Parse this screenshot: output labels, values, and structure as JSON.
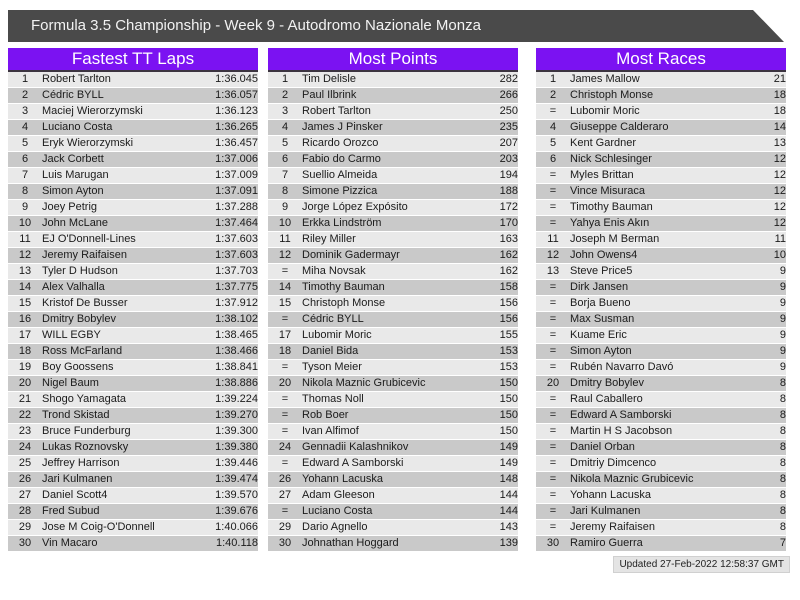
{
  "page_title": "Formula 3.5 Championship - Week 9 - Autodromo Nazionale Monza",
  "colors": {
    "accent_header": "#7b12f2",
    "title_bar": "#4a4a4a",
    "row_odd": "#e9e9e9",
    "row_even": "#c9c9c9"
  },
  "tables": [
    {
      "title": "Fastest TT Laps",
      "rows": [
        [
          "1",
          "Robert Tarlton",
          "1:36.045"
        ],
        [
          "2",
          "Cédric BYLL",
          "1:36.057"
        ],
        [
          "3",
          "Maciej Wierorzymski",
          "1:36.123"
        ],
        [
          "4",
          "Luciano Costa",
          "1:36.265"
        ],
        [
          "5",
          "Eryk Wierorzymski",
          "1:36.457"
        ],
        [
          "6",
          "Jack Corbett",
          "1:37.006"
        ],
        [
          "7",
          "Luis Marugan",
          "1:37.009"
        ],
        [
          "8",
          "Simon Ayton",
          "1:37.091"
        ],
        [
          "9",
          "Joey Petrig",
          "1:37.288"
        ],
        [
          "10",
          "John McLane",
          "1:37.464"
        ],
        [
          "11",
          "EJ O'Donnell-Lines",
          "1:37.603"
        ],
        [
          "12",
          "Jeremy Raifaisen",
          "1:37.603"
        ],
        [
          "13",
          "Tyler D Hudson",
          "1:37.703"
        ],
        [
          "14",
          "Alex Valhalla",
          "1:37.775"
        ],
        [
          "15",
          "Kristof De Busser",
          "1:37.912"
        ],
        [
          "16",
          "Dmitry Bobylev",
          "1:38.102"
        ],
        [
          "17",
          "WILL EGBY",
          "1:38.465"
        ],
        [
          "18",
          "Ross McFarland",
          "1:38.466"
        ],
        [
          "19",
          "Boy Goossens",
          "1:38.841"
        ],
        [
          "20",
          "Nigel Baum",
          "1:38.886"
        ],
        [
          "21",
          "Shogo Yamagata",
          "1:39.224"
        ],
        [
          "22",
          "Trond Skistad",
          "1:39.270"
        ],
        [
          "23",
          "Bruce Funderburg",
          "1:39.300"
        ],
        [
          "24",
          "Lukas Roznovsky",
          "1:39.380"
        ],
        [
          "25",
          "Jeffrey Harrison",
          "1:39.446"
        ],
        [
          "26",
          "Jari Kulmanen",
          "1:39.474"
        ],
        [
          "27",
          "Daniel Scott4",
          "1:39.570"
        ],
        [
          "28",
          "Fred Subud",
          "1:39.676"
        ],
        [
          "29",
          "Jose M Coig-O'Donnell",
          "1:40.066"
        ],
        [
          "30",
          "Vin Macaro",
          "1:40.118"
        ]
      ]
    },
    {
      "title": "Most Points",
      "rows": [
        [
          "1",
          "Tim Delisle",
          "282"
        ],
        [
          "2",
          "Paul Ilbrink",
          "266"
        ],
        [
          "3",
          "Robert Tarlton",
          "250"
        ],
        [
          "4",
          "James J Pinsker",
          "235"
        ],
        [
          "5",
          "Ricardo Orozco",
          "207"
        ],
        [
          "6",
          "Fabio do Carmo",
          "203"
        ],
        [
          "7",
          "Suellio Almeida",
          "194"
        ],
        [
          "8",
          "Simone Pizzica",
          "188"
        ],
        [
          "9",
          "Jorge López Expósito",
          "172"
        ],
        [
          "10",
          "Erkka Lindström",
          "170"
        ],
        [
          "11",
          "Riley Miller",
          "163"
        ],
        [
          "12",
          "Dominik Gadermayr",
          "162"
        ],
        [
          "=",
          "Miha Novsak",
          "162"
        ],
        [
          "14",
          "Timothy Bauman",
          "158"
        ],
        [
          "15",
          "Christoph Monse",
          "156"
        ],
        [
          "=",
          "Cédric BYLL",
          "156"
        ],
        [
          "17",
          "Lubomir Moric",
          "155"
        ],
        [
          "18",
          "Daniel Bida",
          "153"
        ],
        [
          "=",
          "Tyson Meier",
          "153"
        ],
        [
          "20",
          "Nikola Maznic Grubicevic",
          "150"
        ],
        [
          "=",
          "Thomas Noll",
          "150"
        ],
        [
          "=",
          "Rob Boer",
          "150"
        ],
        [
          "=",
          "Ivan Alfimof",
          "150"
        ],
        [
          "24",
          "Gennadii Kalashnikov",
          "149"
        ],
        [
          "=",
          "Edward A Samborski",
          "149"
        ],
        [
          "26",
          "Yohann Lacuska",
          "148"
        ],
        [
          "27",
          "Adam Gleeson",
          "144"
        ],
        [
          "=",
          "Luciano Costa",
          "144"
        ],
        [
          "29",
          "Dario Agnello",
          "143"
        ],
        [
          "30",
          "Johnathan Hoggard",
          "139"
        ]
      ]
    },
    {
      "title": "Most Races",
      "rows": [
        [
          "1",
          "James Mallow",
          "21"
        ],
        [
          "2",
          "Christoph Monse",
          "18"
        ],
        [
          "=",
          "Lubomir Moric",
          "18"
        ],
        [
          "4",
          "Giuseppe Calderaro",
          "14"
        ],
        [
          "5",
          "Kent Gardner",
          "13"
        ],
        [
          "6",
          "Nick Schlesinger",
          "12"
        ],
        [
          "=",
          "Myles Brittan",
          "12"
        ],
        [
          "=",
          "Vince Misuraca",
          "12"
        ],
        [
          "=",
          "Timothy Bauman",
          "12"
        ],
        [
          "=",
          "Yahya Enis Akın",
          "12"
        ],
        [
          "11",
          "Joseph M Berman",
          "11"
        ],
        [
          "12",
          "John Owens4",
          "10"
        ],
        [
          "13",
          "Steve Price5",
          "9"
        ],
        [
          "=",
          "Dirk Jansen",
          "9"
        ],
        [
          "=",
          "Borja Bueno",
          "9"
        ],
        [
          "=",
          "Max Susman",
          "9"
        ],
        [
          "=",
          "Kuame Eric",
          "9"
        ],
        [
          "=",
          "Simon Ayton",
          "9"
        ],
        [
          "=",
          "Rubén Navarro Davó",
          "9"
        ],
        [
          "20",
          "Dmitry Bobylev",
          "8"
        ],
        [
          "=",
          "Raul Caballero",
          "8"
        ],
        [
          "=",
          "Edward A Samborski",
          "8"
        ],
        [
          "=",
          "Martin H S Jacobson",
          "8"
        ],
        [
          "=",
          "Daniel Orban",
          "8"
        ],
        [
          "=",
          "Dmitriy Dimcenco",
          "8"
        ],
        [
          "=",
          "Nikola Maznic Grubicevic",
          "8"
        ],
        [
          "=",
          "Yohann Lacuska",
          "8"
        ],
        [
          "=",
          "Jari Kulmanen",
          "8"
        ],
        [
          "=",
          "Jeremy Raifaisen",
          "8"
        ],
        [
          "30",
          "Ramiro Guerra",
          "7"
        ]
      ]
    }
  ],
  "footer": {
    "updated": "Updated 27-Feb-2022 12:58:37 GMT"
  }
}
